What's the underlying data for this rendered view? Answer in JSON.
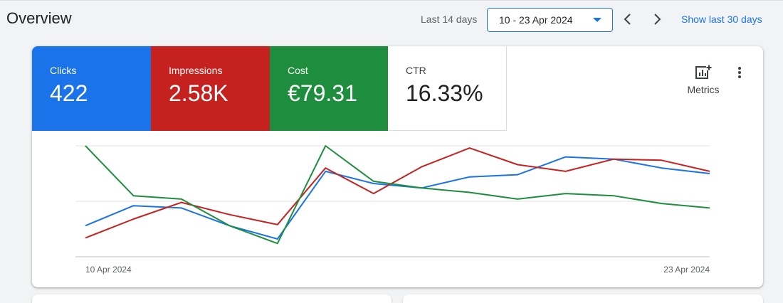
{
  "header": {
    "title": "Overview",
    "range_label": "Last 14 days",
    "range_value": "10 - 23 Apr 2024",
    "show_30": "Show last 30 days"
  },
  "tiles": [
    {
      "label": "Clicks",
      "value": "422"
    },
    {
      "label": "Impressions",
      "value": "2.58K"
    },
    {
      "label": "Cost",
      "value": "€79.31"
    },
    {
      "label": "CTR",
      "value": "16.33%"
    }
  ],
  "metrics_button": {
    "label": "Metrics"
  },
  "chart_data": {
    "type": "line",
    "x_start_label": "10 Apr 2024",
    "x_end_label": "23 Apr 2024",
    "ylim": [
      0,
      100
    ],
    "grid": true,
    "series": [
      {
        "color": "#1a73e8",
        "values": [
          28,
          46,
          44,
          28,
          16,
          77,
          66,
          62,
          72,
          74,
          90,
          88,
          80,
          75
        ]
      },
      {
        "color": "#c5221f",
        "values": [
          17,
          34,
          49,
          38,
          29,
          80,
          57,
          81,
          98,
          83,
          77,
          88,
          87,
          77
        ]
      },
      {
        "color": "#1e8e3e",
        "values": [
          100,
          55,
          52,
          28,
          12,
          100,
          68,
          62,
          58,
          52,
          57,
          55,
          48,
          44
        ]
      }
    ]
  }
}
